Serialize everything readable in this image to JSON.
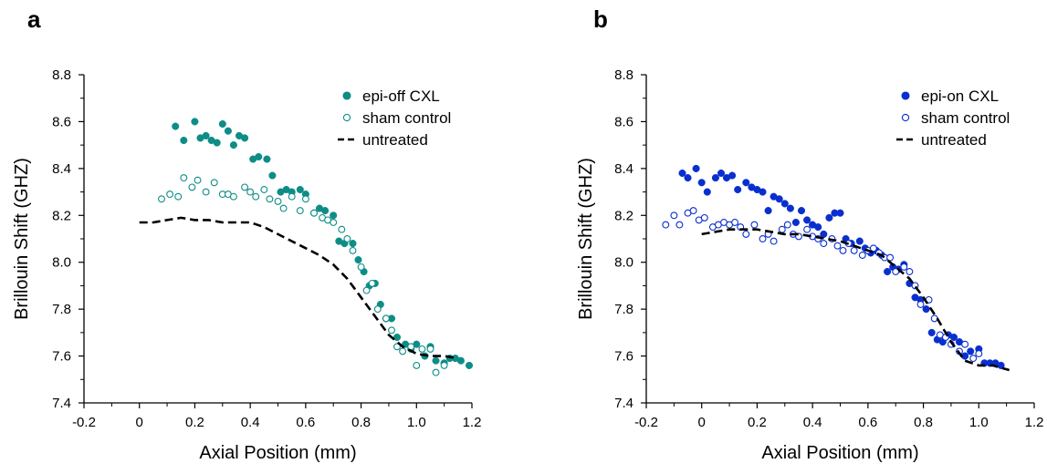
{
  "figure": {
    "background": "#ffffff"
  },
  "chart_data": [
    {
      "panel_label": "a",
      "type": "scatter",
      "xlabel": "Axial Position (mm)",
      "ylabel": "Brillouin Shift (GHZ)",
      "xlim": [
        -0.2,
        1.2
      ],
      "ylim": [
        7.4,
        8.8
      ],
      "xticks": [
        "-0.2",
        "0",
        "0.2",
        "0.4",
        "0.6",
        "0.8",
        "1.0",
        "1.2"
      ],
      "yticks": [
        "7.4",
        "7.6",
        "7.8",
        "8.0",
        "8.2",
        "8.4",
        "8.6",
        "8.8"
      ],
      "grid": false,
      "legend_placement": "top-right",
      "series": [
        {
          "name": "epi-off CXL",
          "style": "filled-circle",
          "color": "#0e8d87",
          "x": [
            0.13,
            0.16,
            0.2,
            0.22,
            0.24,
            0.26,
            0.28,
            0.3,
            0.32,
            0.34,
            0.36,
            0.38,
            0.41,
            0.43,
            0.46,
            0.48,
            0.51,
            0.53,
            0.55,
            0.58,
            0.6,
            0.63,
            0.65,
            0.67,
            0.7,
            0.72,
            0.74,
            0.77,
            0.79,
            0.81,
            0.83,
            0.85,
            0.87,
            0.89,
            0.91,
            0.93,
            0.96,
            0.98,
            1.0,
            1.03,
            1.05,
            1.07,
            1.1,
            1.12,
            1.14,
            1.16,
            1.19
          ],
          "y": [
            8.58,
            8.52,
            8.6,
            8.53,
            8.54,
            8.52,
            8.51,
            8.59,
            8.56,
            8.5,
            8.54,
            8.53,
            8.44,
            8.45,
            8.44,
            8.37,
            8.3,
            8.31,
            8.3,
            8.31,
            8.29,
            8.21,
            8.23,
            8.22,
            8.2,
            8.09,
            8.08,
            8.08,
            8.01,
            7.96,
            7.9,
            7.91,
            7.82,
            7.76,
            7.76,
            7.68,
            7.65,
            7.63,
            7.65,
            7.6,
            7.64,
            7.58,
            7.57,
            7.59,
            7.59,
            7.58,
            7.56
          ]
        },
        {
          "name": "sham control",
          "style": "open-circle",
          "color": "#0e8d87",
          "x": [
            0.08,
            0.11,
            0.14,
            0.16,
            0.19,
            0.21,
            0.24,
            0.27,
            0.3,
            0.32,
            0.34,
            0.38,
            0.4,
            0.42,
            0.45,
            0.47,
            0.5,
            0.52,
            0.55,
            0.58,
            0.6,
            0.63,
            0.66,
            0.68,
            0.7,
            0.73,
            0.75,
            0.77,
            0.8,
            0.82,
            0.84,
            0.86,
            0.89,
            0.91,
            0.93,
            0.95,
            0.98,
            1.0,
            1.02,
            1.05,
            1.07,
            1.1
          ],
          "y": [
            8.27,
            8.29,
            8.28,
            8.36,
            8.32,
            8.35,
            8.3,
            8.34,
            8.29,
            8.29,
            8.28,
            8.32,
            8.3,
            8.28,
            8.31,
            8.27,
            8.26,
            8.23,
            8.28,
            8.22,
            8.27,
            8.21,
            8.19,
            8.18,
            8.17,
            8.14,
            8.1,
            8.05,
            7.98,
            7.88,
            7.91,
            7.8,
            7.76,
            7.71,
            7.64,
            7.62,
            7.64,
            7.56,
            7.63,
            7.63,
            7.53,
            7.56
          ]
        },
        {
          "name": "untreated",
          "style": "dashed-line",
          "color": "#000000",
          "x": [
            0.0,
            0.05,
            0.1,
            0.15,
            0.2,
            0.25,
            0.3,
            0.35,
            0.4,
            0.45,
            0.5,
            0.55,
            0.6,
            0.65,
            0.7,
            0.75,
            0.8,
            0.85,
            0.9,
            0.95,
            1.0,
            1.05,
            1.1,
            1.15
          ],
          "y": [
            8.17,
            8.17,
            8.18,
            8.19,
            8.18,
            8.18,
            8.17,
            8.17,
            8.17,
            8.15,
            8.12,
            8.09,
            8.06,
            8.03,
            7.99,
            7.93,
            7.85,
            7.77,
            7.69,
            7.64,
            7.61,
            7.6,
            7.6,
            7.59
          ]
        }
      ]
    },
    {
      "panel_label": "b",
      "type": "scatter",
      "xlabel": "Axial Position (mm)",
      "ylabel": "Brillouin Shift (GHZ)",
      "xlim": [
        -0.2,
        1.2
      ],
      "ylim": [
        7.4,
        8.8
      ],
      "xticks": [
        "-0.2",
        "0",
        "0.2",
        "0.4",
        "0.6",
        "0.8",
        "1.0",
        "1.2"
      ],
      "yticks": [
        "7.4",
        "7.6",
        "7.8",
        "8.0",
        "8.2",
        "8.4",
        "8.6",
        "8.8"
      ],
      "grid": false,
      "legend_placement": "top-right",
      "series": [
        {
          "name": "epi-on CXL",
          "style": "filled-circle",
          "color": "#0a2fcf",
          "x": [
            -0.07,
            -0.05,
            -0.02,
            0.0,
            0.02,
            0.05,
            0.07,
            0.09,
            0.11,
            0.13,
            0.16,
            0.18,
            0.2,
            0.22,
            0.24,
            0.26,
            0.28,
            0.3,
            0.32,
            0.34,
            0.36,
            0.38,
            0.4,
            0.42,
            0.44,
            0.46,
            0.48,
            0.5,
            0.52,
            0.54,
            0.57,
            0.59,
            0.61,
            0.63,
            0.65,
            0.67,
            0.69,
            0.71,
            0.73,
            0.75,
            0.77,
            0.79,
            0.81,
            0.83,
            0.85,
            0.87,
            0.89,
            0.91,
            0.93,
            0.95,
            0.97,
            1.0,
            1.02,
            1.04,
            1.06,
            1.08
          ],
          "y": [
            8.38,
            8.36,
            8.4,
            8.34,
            8.3,
            8.36,
            8.38,
            8.36,
            8.37,
            8.31,
            8.34,
            8.32,
            8.31,
            8.3,
            8.22,
            8.28,
            8.27,
            8.25,
            8.23,
            8.17,
            8.22,
            8.18,
            8.16,
            8.15,
            8.12,
            8.19,
            8.21,
            8.21,
            8.1,
            8.08,
            8.09,
            8.06,
            8.04,
            8.05,
            8.03,
            7.96,
            7.98,
            7.97,
            7.99,
            7.91,
            7.85,
            7.84,
            7.8,
            7.7,
            7.67,
            7.66,
            7.69,
            7.68,
            7.66,
            7.6,
            7.62,
            7.63,
            7.57,
            7.57,
            7.57,
            7.56
          ]
        },
        {
          "name": "sham control",
          "style": "open-circle",
          "color": "#0a2fcf",
          "x": [
            -0.13,
            -0.1,
            -0.08,
            -0.05,
            -0.03,
            -0.01,
            0.01,
            0.04,
            0.06,
            0.08,
            0.1,
            0.12,
            0.14,
            0.16,
            0.19,
            0.22,
            0.24,
            0.26,
            0.29,
            0.31,
            0.33,
            0.35,
            0.38,
            0.4,
            0.42,
            0.44,
            0.47,
            0.49,
            0.51,
            0.53,
            0.55,
            0.58,
            0.6,
            0.62,
            0.64,
            0.66,
            0.68,
            0.7,
            0.73,
            0.75,
            0.77,
            0.79,
            0.82,
            0.84,
            0.86,
            0.88,
            0.9,
            0.93,
            0.95,
            0.98,
            1.0
          ],
          "y": [
            8.16,
            8.2,
            8.16,
            8.21,
            8.22,
            8.18,
            8.19,
            8.15,
            8.16,
            8.17,
            8.16,
            8.17,
            8.15,
            8.12,
            8.16,
            8.1,
            8.12,
            8.09,
            8.14,
            8.16,
            8.12,
            8.11,
            8.14,
            8.11,
            8.1,
            8.08,
            8.1,
            8.07,
            8.05,
            8.08,
            8.05,
            8.03,
            8.05,
            8.06,
            8.04,
            8.02,
            8.02,
            7.96,
            7.98,
            7.96,
            7.9,
            7.82,
            7.84,
            7.76,
            7.69,
            7.68,
            7.65,
            7.62,
            7.65,
            7.59,
            7.61
          ]
        },
        {
          "name": "untreated",
          "style": "dashed-line",
          "color": "#000000",
          "x": [
            0.0,
            0.05,
            0.1,
            0.15,
            0.2,
            0.25,
            0.3,
            0.35,
            0.4,
            0.45,
            0.5,
            0.55,
            0.6,
            0.65,
            0.7,
            0.75,
            0.8,
            0.85,
            0.9,
            0.95,
            1.0,
            1.05,
            1.11
          ],
          "y": [
            8.12,
            8.13,
            8.14,
            8.14,
            8.14,
            8.13,
            8.12,
            8.12,
            8.11,
            8.1,
            8.09,
            8.07,
            8.05,
            8.03,
            7.98,
            7.93,
            7.85,
            7.76,
            7.66,
            7.58,
            7.56,
            7.56,
            7.54
          ]
        }
      ]
    }
  ]
}
